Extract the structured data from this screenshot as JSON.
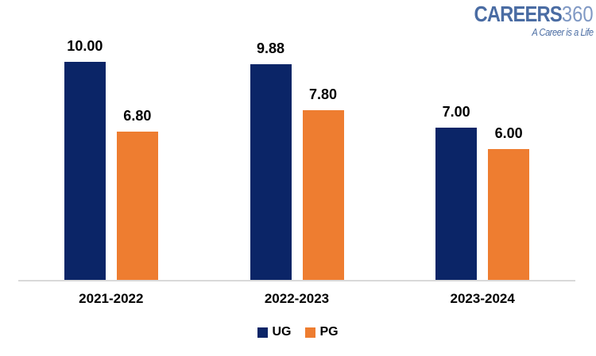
{
  "logo": {
    "brand": "CAREERS",
    "brand_suffix": "360",
    "tagline": "A Career is a Life",
    "brand_color": "#4a6ca3",
    "suffix_color": "#8099c4"
  },
  "chart_data": {
    "type": "bar",
    "title": "",
    "xlabel": "",
    "ylabel": "",
    "categories": [
      "2021-2022",
      "2022-2023",
      "2023-2024"
    ],
    "series": [
      {
        "name": "UG",
        "color": "#0b2567",
        "values": [
          10.0,
          9.88,
          7.0
        ],
        "labels": [
          "10.00",
          "9.88",
          "7.00"
        ]
      },
      {
        "name": "PG",
        "color": "#ee7d30",
        "values": [
          6.8,
          7.8,
          6.0
        ],
        "labels": [
          "6.80",
          "7.80",
          "6.00"
        ]
      }
    ],
    "ylim": [
      0,
      12.8
    ],
    "grid": false,
    "axis_ticks_visible": false,
    "legend_position": "bottom",
    "axis_line_color": "#d9d9d9",
    "value_label_color": "#000000",
    "background_color": "#ffffff"
  }
}
